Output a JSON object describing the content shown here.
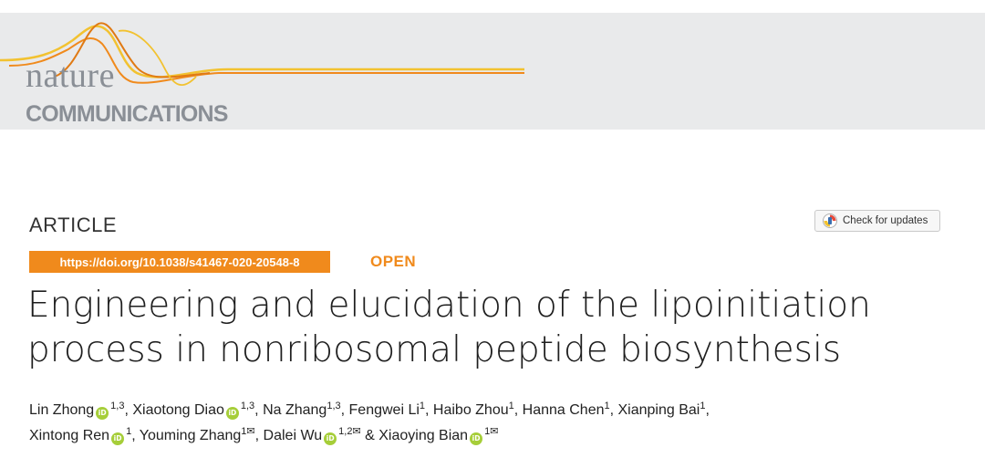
{
  "journal": {
    "name_line1": "nature",
    "name_line2": "COMMUNICATIONS",
    "accent_colors": [
      "#f08a1c",
      "#f2c230",
      "#e07a14"
    ]
  },
  "article": {
    "type": "ARTICLE",
    "doi": "https://doi.org/10.1038/s41467-020-20548-8",
    "access": "OPEN",
    "title_line1": "Engineering and elucidation of the lipoinitiation",
    "title_line2": "process in nonribosomal peptide biosynthesis",
    "check_updates_label": "Check for updates",
    "check_updates_icon": "crossmark-icon"
  },
  "authors": [
    {
      "name": "Lin Zhong",
      "orcid": true,
      "affil": "1,3",
      "corresponding": false,
      "sep": ", "
    },
    {
      "name": "Xiaotong Diao",
      "orcid": true,
      "affil": "1,3",
      "corresponding": false,
      "sep": ", "
    },
    {
      "name": "Na Zhang",
      "orcid": false,
      "affil": "1,3",
      "corresponding": false,
      "sep": ", "
    },
    {
      "name": "Fengwei Li",
      "orcid": false,
      "affil": "1",
      "corresponding": false,
      "sep": ", "
    },
    {
      "name": "Haibo Zhou",
      "orcid": false,
      "affil": "1",
      "corresponding": false,
      "sep": ", "
    },
    {
      "name": "Hanna Chen",
      "orcid": false,
      "affil": "1",
      "corresponding": false,
      "sep": ", "
    },
    {
      "name": "Xianping Bai",
      "orcid": false,
      "affil": "1",
      "corresponding": false,
      "sep": ","
    },
    {
      "name": "Xintong Ren",
      "orcid": true,
      "affil": "1",
      "corresponding": false,
      "sep": ", "
    },
    {
      "name": "Youming Zhang",
      "orcid": false,
      "affil": "1",
      "corresponding": true,
      "sep": ", "
    },
    {
      "name": "Dalei Wu",
      "orcid": true,
      "affil": "1,2",
      "corresponding": true,
      "sep": " & "
    },
    {
      "name": "Xiaoying Bian",
      "orcid": true,
      "affil": "1",
      "corresponding": true,
      "sep": ""
    }
  ]
}
